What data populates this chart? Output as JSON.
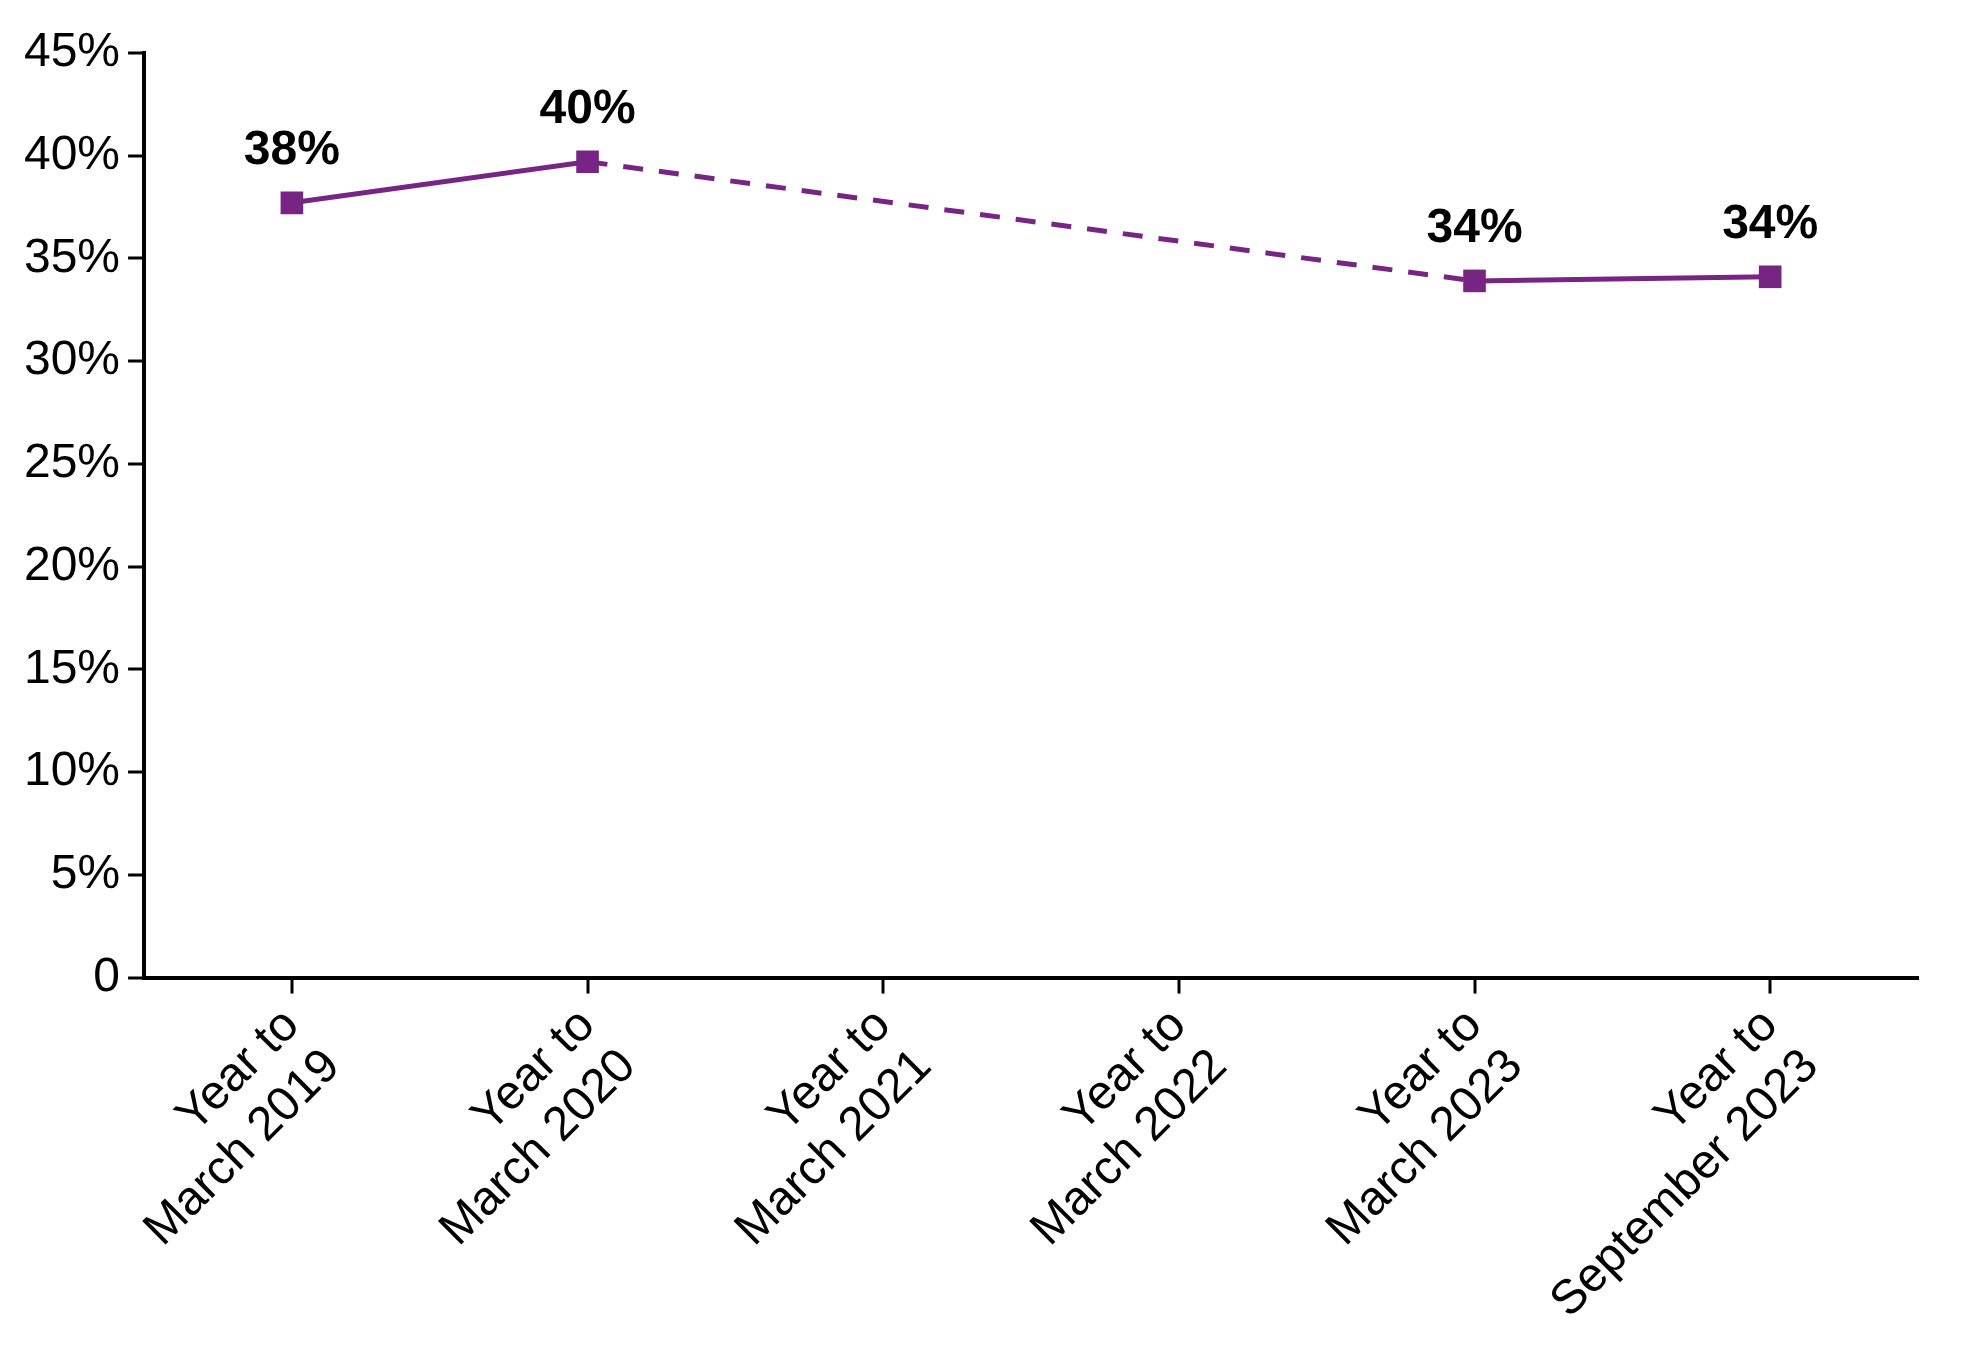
{
  "chart_data": {
    "type": "line",
    "categories": [
      "Year to\nMarch 2019",
      "Year to\nMarch 2020",
      "Year to\nMarch 2021",
      "Year to\nMarch 2022",
      "Year to\nMarch 2023",
      "Year to\nSeptember 2023"
    ],
    "series": [
      {
        "color": "#772583",
        "values": [
          37.7,
          39.7,
          null,
          null,
          33.9,
          34.1
        ],
        "value_labels": [
          "38%",
          "40%",
          null,
          null,
          "34%",
          "34%"
        ]
      }
    ],
    "ylim": [
      0,
      45
    ],
    "yticks": [
      0,
      {
        "value": 5,
        "label": "5%"
      },
      {
        "value": 10,
        "label": "10%"
      },
      {
        "value": 15,
        "label": "15%"
      },
      {
        "value": 20,
        "label": "20%"
      },
      {
        "value": 25,
        "label": "25%"
      },
      {
        "value": 30,
        "label": "30%"
      },
      {
        "value": 35,
        "label": "35%"
      },
      {
        "value": 40,
        "label": "40%"
      },
      {
        "value": 45,
        "label": "45%"
      }
    ],
    "grid": false,
    "legend": false,
    "marker": "square",
    "line_style": "solid"
  }
}
